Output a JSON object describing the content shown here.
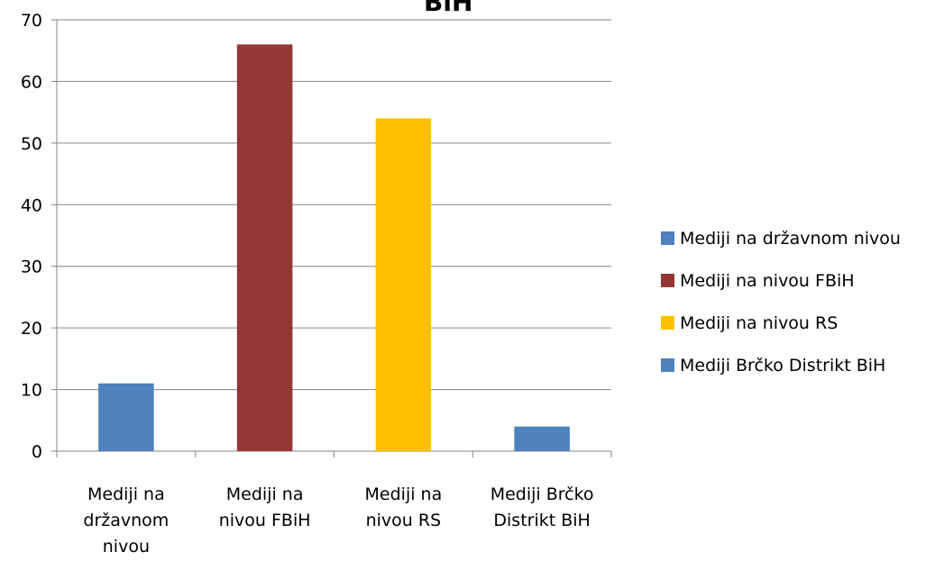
{
  "chart_data": {
    "type": "bar",
    "title": "BiH",
    "categories": [
      "Mediji na državnom nivou",
      "Mediji na nivou FBiH",
      "Mediji na nivou RS",
      "Mediji Brčko Distrikt BiH"
    ],
    "category_label_lines": [
      [
        "Mediji na",
        "državnom",
        "nivou"
      ],
      [
        "Mediji na",
        "nivou FBiH"
      ],
      [
        "Mediji na",
        "nivou RS"
      ],
      [
        "Mediji Brčko",
        "Distrikt BiH"
      ]
    ],
    "values": [
      11,
      66,
      54,
      4
    ],
    "colors": [
      "#4F81BD",
      "#943634",
      "#FFC000",
      "#4F81BD"
    ],
    "ylim": [
      0,
      70
    ],
    "yticks": [
      0,
      10,
      20,
      30,
      40,
      50,
      60,
      70
    ],
    "grid": true,
    "legend_position": "right",
    "legend": [
      {
        "label": "Mediji na državnom nivou",
        "color": "#4F81BD"
      },
      {
        "label": "Mediji na nivou FBiH",
        "color": "#943634"
      },
      {
        "label": "Mediji na nivou RS",
        "color": "#FFC000"
      },
      {
        "label": "Mediji Brčko Distrikt BiH",
        "color": "#4F81BD"
      }
    ],
    "xlabel": "",
    "ylabel": ""
  }
}
